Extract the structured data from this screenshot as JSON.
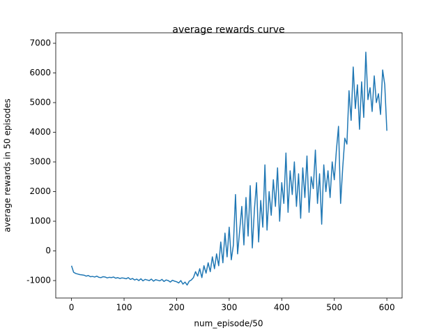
{
  "chart_data": {
    "type": "line",
    "title": "average rewards curve",
    "xlabel": "num_episode/50",
    "ylabel": "average rewards in 50 episodes",
    "x": [
      0,
      4,
      8,
      12,
      16,
      20,
      24,
      28,
      32,
      36,
      40,
      44,
      48,
      52,
      56,
      60,
      64,
      68,
      72,
      76,
      80,
      84,
      88,
      92,
      96,
      100,
      104,
      108,
      112,
      116,
      120,
      124,
      128,
      132,
      136,
      140,
      144,
      148,
      152,
      156,
      160,
      164,
      168,
      172,
      176,
      180,
      184,
      188,
      192,
      196,
      200,
      204,
      208,
      212,
      216,
      220,
      224,
      228,
      232,
      236,
      240,
      244,
      248,
      252,
      256,
      260,
      264,
      268,
      272,
      276,
      280,
      284,
      288,
      292,
      296,
      300,
      304,
      308,
      312,
      316,
      320,
      324,
      328,
      332,
      336,
      340,
      344,
      348,
      352,
      356,
      360,
      364,
      368,
      372,
      376,
      380,
      384,
      388,
      392,
      396,
      400,
      404,
      408,
      412,
      416,
      420,
      424,
      428,
      432,
      436,
      440,
      444,
      448,
      452,
      456,
      460,
      464,
      468,
      472,
      476,
      480,
      484,
      488,
      492,
      496,
      500,
      504,
      508,
      512,
      516,
      520,
      524,
      528,
      532,
      536,
      540,
      544,
      548,
      552,
      556,
      560,
      564,
      568,
      572,
      576,
      580,
      584,
      588,
      592,
      596,
      600
    ],
    "series": [
      {
        "name": "average rewards",
        "color": "#1f77b4",
        "values": [
          -500,
          -720,
          -760,
          -780,
          -800,
          -810,
          -820,
          -850,
          -830,
          -870,
          -860,
          -880,
          -850,
          -890,
          -900,
          -870,
          -880,
          -910,
          -890,
          -900,
          -880,
          -920,
          -900,
          -930,
          -910,
          -920,
          -940,
          -900,
          -960,
          -930,
          -980,
          -950,
          -1000,
          -940,
          -1010,
          -960,
          -980,
          -1000,
          -950,
          -1020,
          -970,
          -990,
          -1010,
          -960,
          -1030,
          -980,
          -1000,
          -1050,
          -990,
          -1020,
          -1040,
          -1080,
          -1000,
          -1120,
          -1050,
          -1150,
          -1020,
          -980,
          -900,
          -700,
          -850,
          -600,
          -900,
          -500,
          -750,
          -400,
          -700,
          -200,
          -600,
          -100,
          -500,
          300,
          -400,
          600,
          -200,
          800,
          -300,
          200,
          1900,
          -100,
          700,
          1500,
          200,
          1800,
          500,
          2200,
          100,
          1400,
          2300,
          300,
          1700,
          800,
          2900,
          700,
          2000,
          1200,
          2400,
          1500,
          2800,
          1000,
          2300,
          1600,
          3300,
          1300,
          2700,
          1900,
          3000,
          1500,
          2600,
          1100,
          2800,
          1800,
          3200,
          1300,
          2500,
          2100,
          3400,
          1600,
          2600,
          900,
          2900,
          2000,
          2700,
          1800,
          3000,
          2400,
          3400,
          4200,
          1600,
          2800,
          3800,
          3600,
          5400,
          4400,
          6200,
          4800,
          5600,
          4100,
          5700,
          4500,
          6700,
          5100,
          5500,
          4700,
          5900,
          5000,
          5300,
          4600,
          6100,
          5600,
          4050
        ]
      }
    ],
    "xlim": [
      -30,
      629
    ],
    "ylim": [
      -1588,
      7353
    ],
    "xticks": [
      0,
      100,
      200,
      300,
      400,
      500,
      600
    ],
    "yticks": [
      -1000,
      0,
      1000,
      2000,
      3000,
      4000,
      5000,
      6000,
      7000
    ]
  }
}
